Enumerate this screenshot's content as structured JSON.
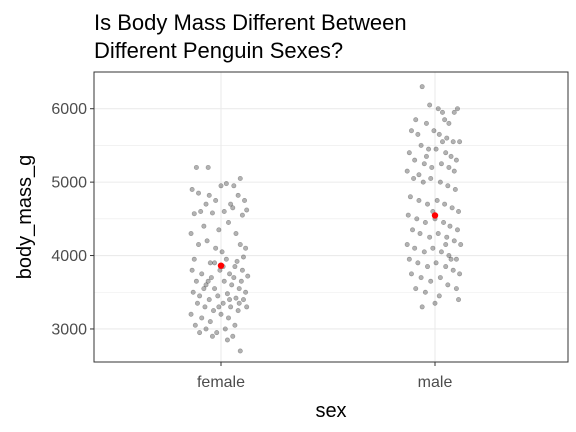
{
  "chart_data": {
    "type": "scatter",
    "subtype": "jitter-strip",
    "title_line1": "Is Body Mass Different Between",
    "title_line2": "Different Penguin Sexes?",
    "xlabel": "sex",
    "ylabel": "body_mass_g",
    "categories": [
      "female",
      "male"
    ],
    "ylim": [
      2550,
      6500
    ],
    "yticks": [
      3000,
      4000,
      5000,
      6000
    ],
    "ytick_labels": [
      "3000",
      "4000",
      "5000",
      "6000"
    ],
    "grid": true,
    "theme": "bw",
    "point_color": "#000000",
    "point_alpha": 0.3,
    "mean_color": "#ff0000",
    "means": [
      3862,
      4546
    ],
    "series": [
      {
        "category": "female",
        "points": [
          [
            -0.23,
            5200
          ],
          [
            -0.12,
            5200
          ],
          [
            -0.27,
            4900
          ],
          [
            -0.21,
            4850
          ],
          [
            -0.11,
            4820
          ],
          [
            -0.05,
            4750
          ],
          [
            -0.14,
            4700
          ],
          [
            0.0,
            4950
          ],
          [
            0.05,
            4980
          ],
          [
            0.12,
            4950
          ],
          [
            0.18,
            5050
          ],
          [
            0.16,
            4820
          ],
          [
            0.22,
            4750
          ],
          [
            0.24,
            4620
          ],
          [
            0.09,
            4700
          ],
          [
            -0.19,
            4600
          ],
          [
            -0.25,
            4570
          ],
          [
            -0.08,
            4580
          ],
          [
            0.03,
            4600
          ],
          [
            0.11,
            4650
          ],
          [
            0.2,
            4550
          ],
          [
            -0.16,
            4400
          ],
          [
            -0.28,
            4300
          ],
          [
            -0.02,
            4350
          ],
          [
            0.07,
            4450
          ],
          [
            0.14,
            4300
          ],
          [
            -0.13,
            4200
          ],
          [
            -0.21,
            4150
          ],
          [
            -0.05,
            4100
          ],
          [
            0.01,
            4050
          ],
          [
            0.18,
            4150
          ],
          [
            0.23,
            4100
          ],
          [
            -0.25,
            3950
          ],
          [
            -0.1,
            3900
          ],
          [
            0.05,
            3950
          ],
          [
            0.15,
            3920
          ],
          [
            0.21,
            3980
          ],
          [
            -0.27,
            3800
          ],
          [
            -0.18,
            3750
          ],
          [
            -0.09,
            3700
          ],
          [
            -0.01,
            3800
          ],
          [
            0.08,
            3750
          ],
          [
            0.12,
            3700
          ],
          [
            0.19,
            3650
          ],
          [
            0.25,
            3720
          ],
          [
            -0.23,
            3650
          ],
          [
            -0.14,
            3600
          ],
          [
            -0.06,
            3550
          ],
          [
            0.03,
            3650
          ],
          [
            0.1,
            3600
          ],
          [
            0.17,
            3550
          ],
          [
            0.23,
            3500
          ],
          [
            -0.26,
            3500
          ],
          [
            -0.2,
            3450
          ],
          [
            -0.11,
            3400
          ],
          [
            -0.03,
            3450
          ],
          [
            0.06,
            3480
          ],
          [
            0.14,
            3420
          ],
          [
            0.21,
            3400
          ],
          [
            -0.22,
            3350
          ],
          [
            -0.15,
            3300
          ],
          [
            -0.07,
            3250
          ],
          [
            0.02,
            3350
          ],
          [
            0.09,
            3300
          ],
          [
            0.16,
            3250
          ],
          [
            0.24,
            3300
          ],
          [
            -0.28,
            3200
          ],
          [
            -0.18,
            3150
          ],
          [
            -0.1,
            3100
          ],
          [
            0.0,
            3200
          ],
          [
            0.07,
            3150
          ],
          [
            0.13,
            3050
          ],
          [
            -0.24,
            3050
          ],
          [
            -0.14,
            3000
          ],
          [
            -0.04,
            2950
          ],
          [
            0.04,
            3000
          ],
          [
            0.11,
            2900
          ],
          [
            -0.2,
            2950
          ],
          [
            -0.08,
            2900
          ],
          [
            0.06,
            2850
          ],
          [
            0.18,
            2700
          ],
          [
            -0.16,
            3550
          ],
          [
            0.02,
            3850
          ],
          [
            -0.06,
            3900
          ],
          [
            0.13,
            3850
          ],
          [
            0.2,
            3800
          ],
          [
            -0.12,
            3650
          ],
          [
            0.08,
            3400
          ],
          [
            -0.02,
            3300
          ],
          [
            0.17,
            3350
          ]
        ]
      },
      {
        "category": "male",
        "points": [
          [
            -0.12,
            6300
          ],
          [
            -0.05,
            6050
          ],
          [
            0.03,
            6000
          ],
          [
            0.07,
            5950
          ],
          [
            0.18,
            5950
          ],
          [
            0.21,
            6000
          ],
          [
            -0.18,
            5850
          ],
          [
            -0.08,
            5800
          ],
          [
            0.09,
            5850
          ],
          [
            0.13,
            5800
          ],
          [
            -0.22,
            5700
          ],
          [
            -0.16,
            5650
          ],
          [
            -0.01,
            5700
          ],
          [
            0.04,
            5650
          ],
          [
            0.11,
            5600
          ],
          [
            0.17,
            5550
          ],
          [
            0.23,
            5550
          ],
          [
            -0.13,
            5500
          ],
          [
            -0.06,
            5450
          ],
          [
            0.01,
            5450
          ],
          [
            0.1,
            5400
          ],
          [
            0.15,
            5350
          ],
          [
            0.2,
            5300
          ],
          [
            -0.24,
            5400
          ],
          [
            -0.19,
            5300
          ],
          [
            -0.1,
            5250
          ],
          [
            -0.03,
            5200
          ],
          [
            0.06,
            5250
          ],
          [
            0.13,
            5200
          ],
          [
            0.18,
            5150
          ],
          [
            -0.26,
            5150
          ],
          [
            -0.2,
            5050
          ],
          [
            -0.11,
            5000
          ],
          [
            -0.04,
            5050
          ],
          [
            0.05,
            5000
          ],
          [
            0.12,
            4950
          ],
          [
            0.19,
            4900
          ],
          [
            -0.23,
            4800
          ],
          [
            -0.15,
            4750
          ],
          [
            -0.07,
            4700
          ],
          [
            0.02,
            4750
          ],
          [
            0.09,
            4700
          ],
          [
            0.16,
            4650
          ],
          [
            0.22,
            4600
          ],
          [
            -0.25,
            4550
          ],
          [
            -0.17,
            4500
          ],
          [
            -0.09,
            4450
          ],
          [
            0.0,
            4500
          ],
          [
            0.08,
            4450
          ],
          [
            0.14,
            4400
          ],
          [
            0.21,
            4350
          ],
          [
            -0.21,
            4350
          ],
          [
            -0.14,
            4300
          ],
          [
            -0.05,
            4250
          ],
          [
            0.03,
            4300
          ],
          [
            0.11,
            4250
          ],
          [
            0.18,
            4200
          ],
          [
            0.24,
            4150
          ],
          [
            -0.26,
            4150
          ],
          [
            -0.19,
            4100
          ],
          [
            -0.1,
            4050
          ],
          [
            -0.02,
            4100
          ],
          [
            0.06,
            4050
          ],
          [
            0.13,
            4000
          ],
          [
            0.2,
            3950
          ],
          [
            -0.24,
            3950
          ],
          [
            -0.16,
            3900
          ],
          [
            -0.07,
            3850
          ],
          [
            0.01,
            3900
          ],
          [
            0.1,
            3850
          ],
          [
            0.17,
            3800
          ],
          [
            0.23,
            3750
          ],
          [
            -0.22,
            3750
          ],
          [
            -0.13,
            3700
          ],
          [
            -0.04,
            3650
          ],
          [
            0.05,
            3700
          ],
          [
            0.12,
            3600
          ],
          [
            0.2,
            3550
          ],
          [
            -0.18,
            3550
          ],
          [
            -0.09,
            3500
          ],
          [
            0.04,
            3450
          ],
          [
            0.22,
            3400
          ],
          [
            -0.12,
            3300
          ],
          [
            0.0,
            3350
          ],
          [
            0.15,
            3950
          ],
          [
            -0.02,
            4600
          ],
          [
            -0.08,
            5350
          ],
          [
            0.07,
            5550
          ],
          [
            -0.15,
            5100
          ],
          [
            0.1,
            4150
          ]
        ]
      }
    ]
  }
}
